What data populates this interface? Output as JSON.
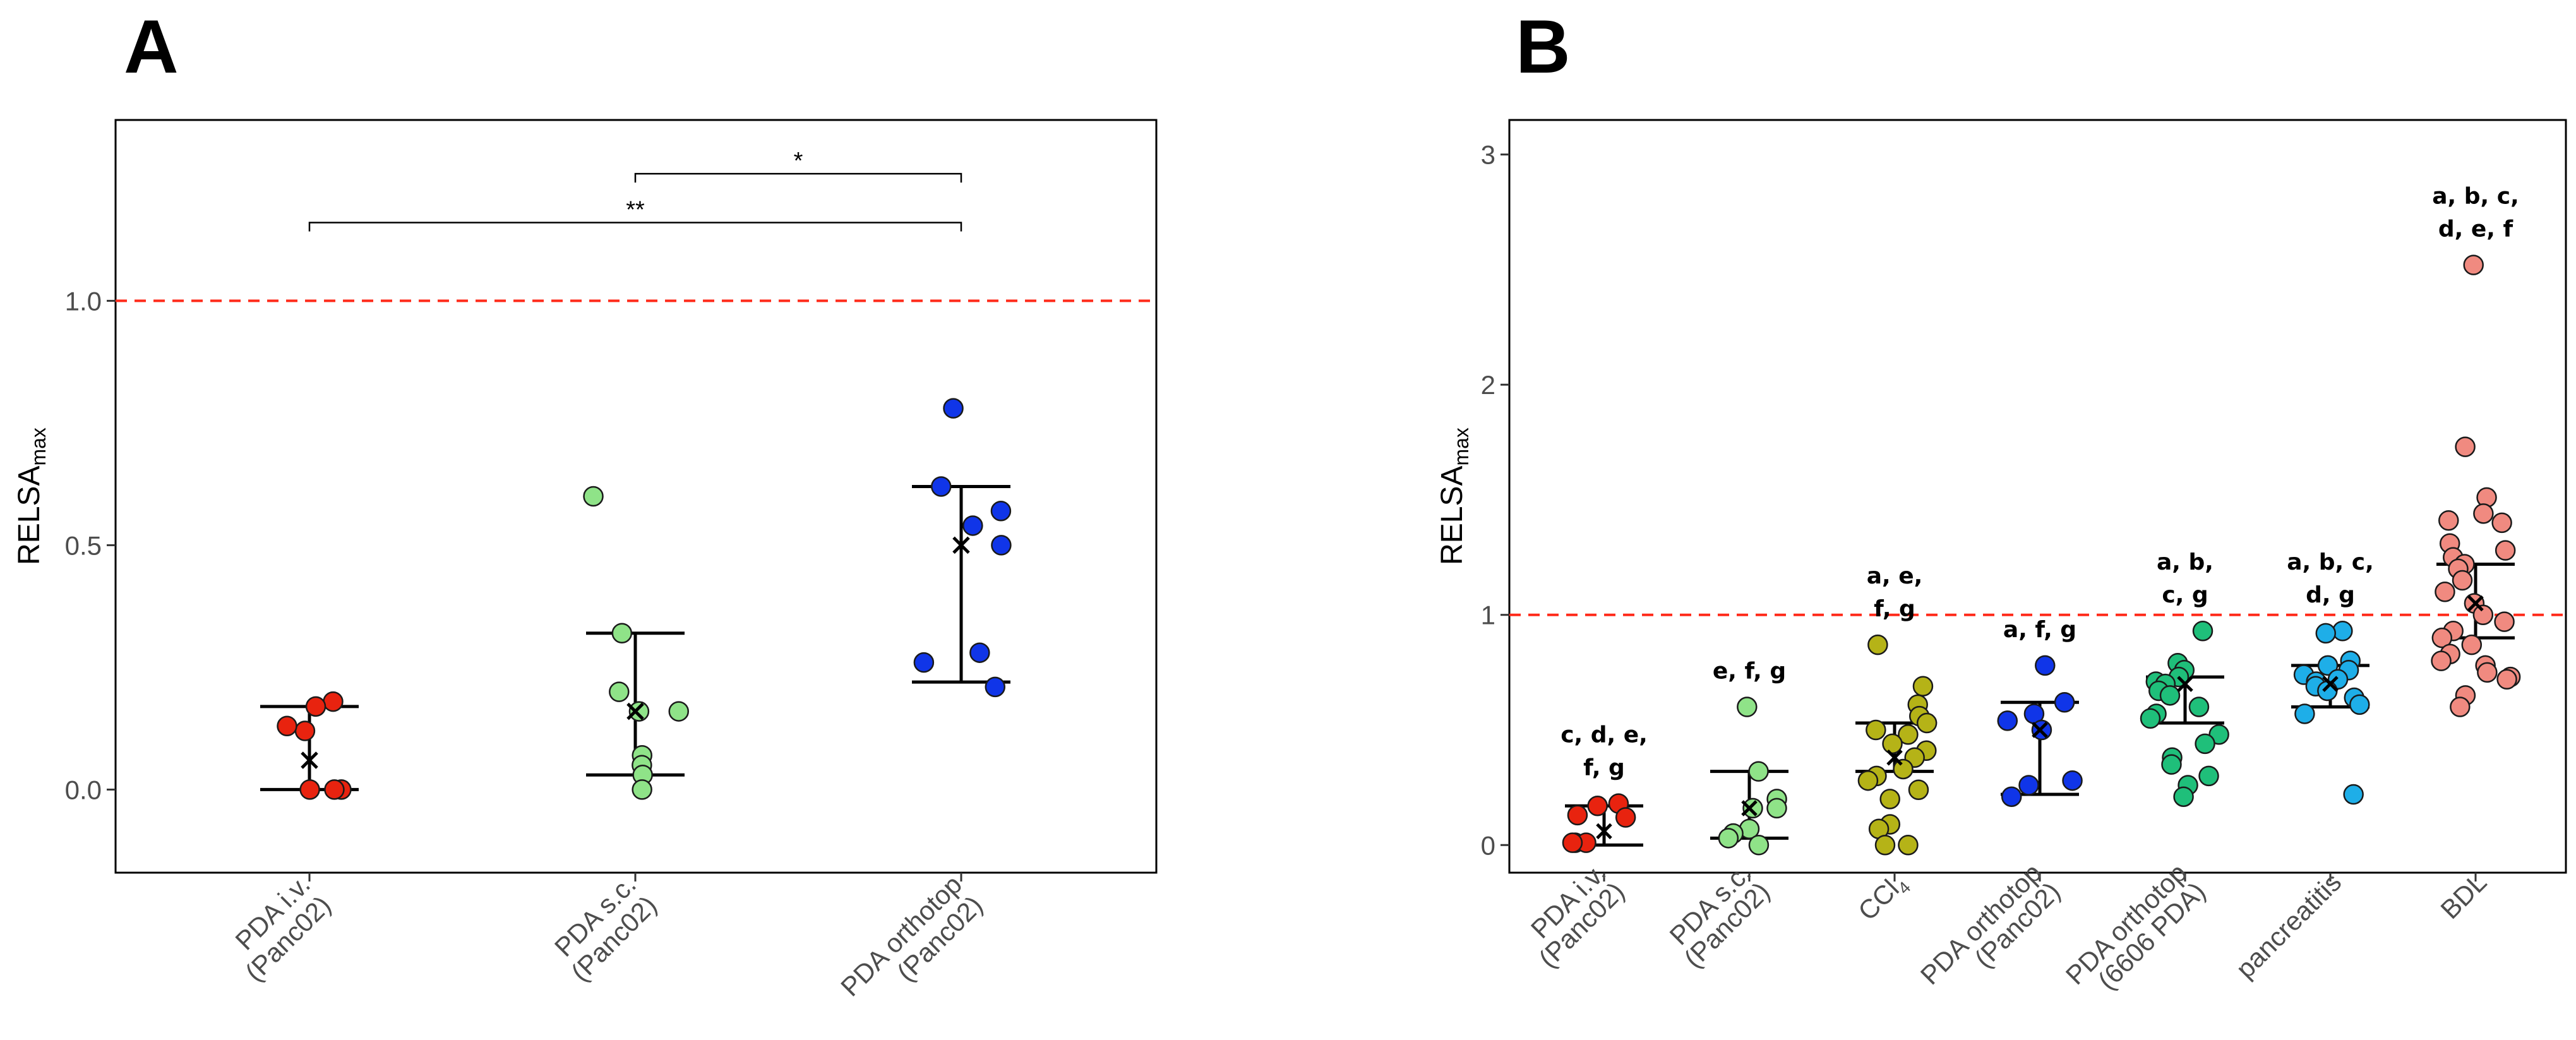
{
  "chart_data": [
    {
      "panel": "A",
      "type": "scatter",
      "ylabel": "RELSA",
      "ylabel_subscript": "max",
      "ylim": [
        -0.17,
        1.37
      ],
      "yticks": [
        0.0,
        0.5,
        1.0
      ],
      "ytick_labels": [
        "0.0",
        "0.5",
        "1.0"
      ],
      "grid": false,
      "legend": "none",
      "reference_line": {
        "y": 1.0,
        "style": "dashed",
        "color": "#ff2a1a"
      },
      "categories": [
        {
          "label": [
            "PDA i.v.",
            "(Panc02)"
          ],
          "color": "#e8230f",
          "points": [
            0.18,
            0.17,
            0.12,
            0.13,
            0.0,
            0.0,
            0.0
          ],
          "mean": 0.06,
          "err_low": 0.0,
          "err_high": 0.17
        },
        {
          "label": [
            "PDA s.c.",
            "(Panc02)"
          ],
          "color": "#8fe388",
          "points": [
            0.6,
            0.32,
            0.2,
            0.16,
            0.16,
            0.07,
            0.05,
            0.03,
            0.0
          ],
          "mean": 0.16,
          "err_low": 0.03,
          "err_high": 0.32
        },
        {
          "label": [
            "PDA orthotop",
            "(Panc02)"
          ],
          "color": "#1035e8",
          "points": [
            0.78,
            0.62,
            0.57,
            0.54,
            0.5,
            0.28,
            0.26,
            0.21
          ],
          "mean": 0.5,
          "err_low": 0.22,
          "err_high": 0.62
        }
      ],
      "significance": [
        {
          "from": 1,
          "to": 2,
          "y": 1.26,
          "label": "*"
        },
        {
          "from": 0,
          "to": 2,
          "y": 1.16,
          "label": "**"
        }
      ]
    },
    {
      "panel": "B",
      "type": "scatter",
      "ylabel": "RELSA",
      "ylabel_subscript": "max",
      "ylim": [
        -0.12,
        3.15
      ],
      "yticks": [
        0,
        1,
        2,
        3
      ],
      "ytick_labels": [
        "0",
        "1",
        "2",
        "3"
      ],
      "grid": false,
      "legend": "none",
      "reference_line": {
        "y": 1.0,
        "style": "dashed",
        "color": "#ff2a1a"
      },
      "categories": [
        {
          "label": [
            "PDA i.v.",
            "(Panc02)"
          ],
          "color": "#e8230f",
          "points": [
            0.18,
            0.17,
            0.13,
            0.12,
            0.01,
            0.01,
            0.01
          ],
          "mean": 0.06,
          "err_low": 0.0,
          "err_high": 0.17,
          "letters": [
            "c, d, e,",
            "f, g"
          ]
        },
        {
          "label": [
            "PDA s.c.",
            "(Panc02)"
          ],
          "color": "#8fe388",
          "points": [
            0.6,
            0.32,
            0.2,
            0.16,
            0.16,
            0.07,
            0.05,
            0.03,
            0.0
          ],
          "mean": 0.16,
          "err_low": 0.03,
          "err_high": 0.32,
          "letters": [
            "e, f, g"
          ]
        },
        {
          "label": [
            "CCl",
            "4"
          ],
          "color": "#b5b317",
          "points": [
            0.87,
            0.69,
            0.61,
            0.56,
            0.53,
            0.5,
            0.48,
            0.44,
            0.41,
            0.38,
            0.33,
            0.3,
            0.28,
            0.24,
            0.2,
            0.09,
            0.07,
            0.0,
            0.0
          ],
          "mean": 0.38,
          "err_low": 0.32,
          "err_high": 0.53,
          "letters": [
            "a, e,",
            "f, g"
          ]
        },
        {
          "label": [
            "PDA orthotop",
            "(Panc02)"
          ],
          "color": "#1035e8",
          "points": [
            0.78,
            0.62,
            0.57,
            0.54,
            0.5,
            0.28,
            0.26,
            0.21
          ],
          "mean": 0.5,
          "err_low": 0.22,
          "err_high": 0.62,
          "letters": [
            "a, f, g"
          ]
        },
        {
          "label": [
            "PDA orthotop",
            "(6606 PDA)"
          ],
          "color": "#1fbf7a",
          "points": [
            0.93,
            0.79,
            0.76,
            0.73,
            0.71,
            0.7,
            0.67,
            0.65,
            0.6,
            0.57,
            0.55,
            0.48,
            0.44,
            0.38,
            0.35,
            0.3,
            0.26,
            0.21
          ],
          "mean": 0.7,
          "err_low": 0.53,
          "err_high": 0.73,
          "letters": [
            "a, b,",
            "c, g"
          ]
        },
        {
          "label": [
            "pancreatitis"
          ],
          "color": "#1eaee8",
          "points": [
            0.93,
            0.92,
            0.8,
            0.78,
            0.76,
            0.74,
            0.72,
            0.71,
            0.69,
            0.67,
            0.64,
            0.61,
            0.57,
            0.22
          ],
          "mean": 0.7,
          "err_low": 0.6,
          "err_high": 0.78,
          "letters": [
            "a, b, c,",
            "d, g"
          ]
        },
        {
          "label": [
            "BDL"
          ],
          "color": "#f08a80",
          "points": [
            2.52,
            1.73,
            1.51,
            1.44,
            1.41,
            1.4,
            1.31,
            1.28,
            1.25,
            1.22,
            1.2,
            1.15,
            1.1,
            1.05,
            1.0,
            0.97,
            0.93,
            0.9,
            0.87,
            0.83,
            0.8,
            0.78,
            0.75,
            0.73,
            0.72,
            0.65,
            0.6
          ],
          "mean": 1.05,
          "err_low": 0.9,
          "err_high": 1.22,
          "letters": [
            "a, b, c,",
            "d, e, f"
          ]
        }
      ]
    }
  ]
}
